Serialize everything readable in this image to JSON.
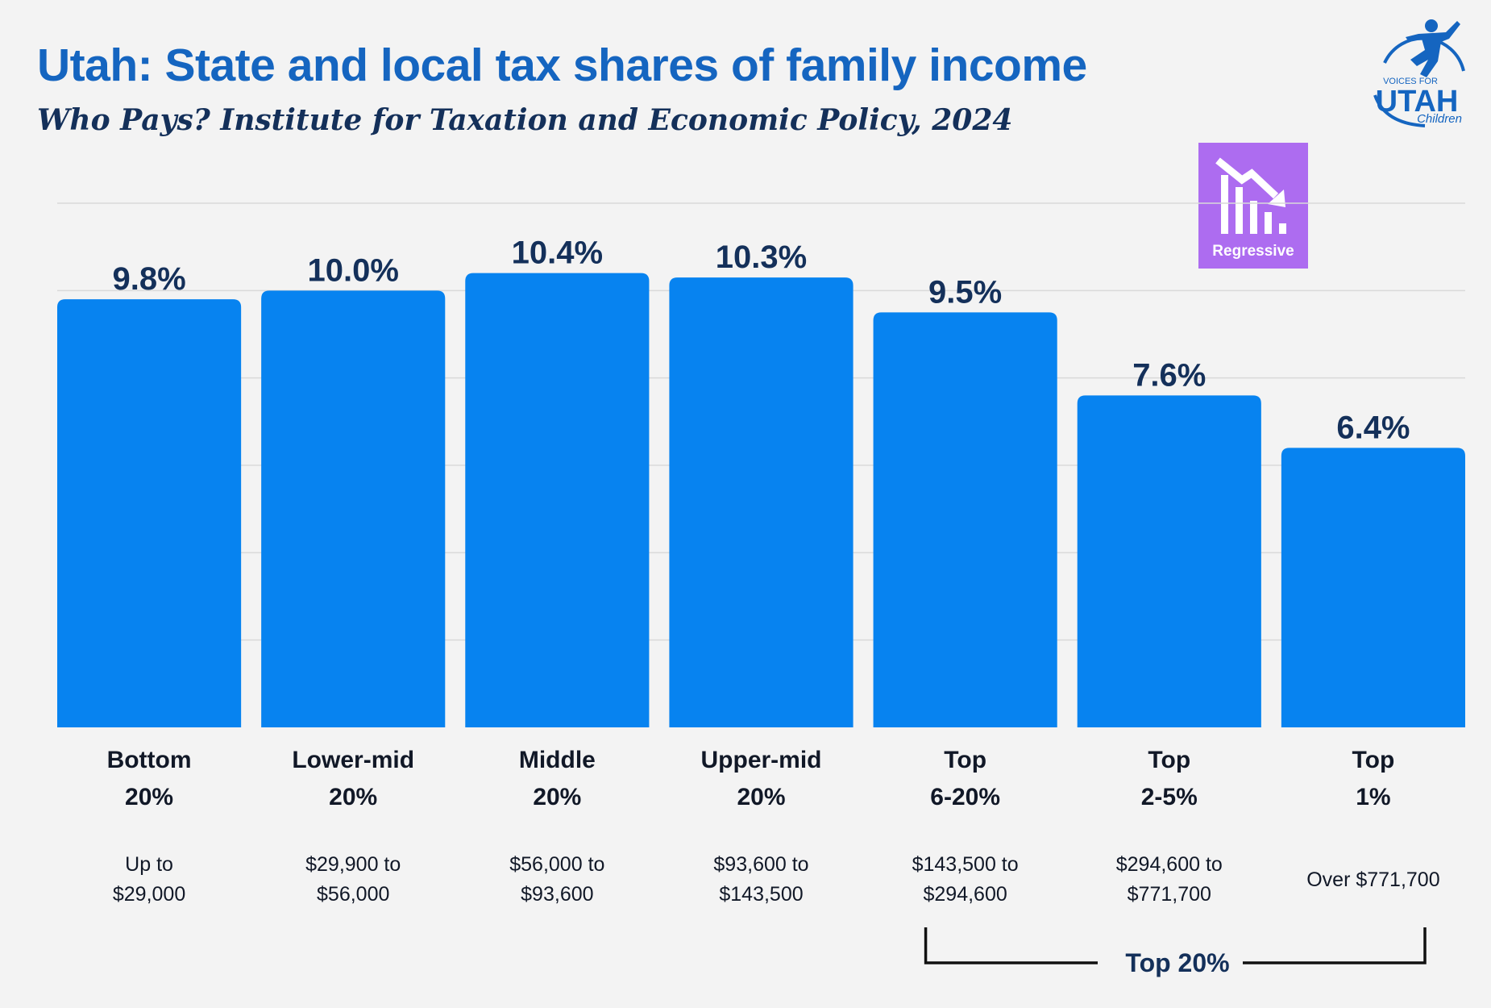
{
  "header": {
    "title": "Utah: State and local tax shares of family income",
    "subtitle": "Who Pays? Institute for Taxation and Economic Policy, 2024"
  },
  "logo": {
    "line1": "VOICES FOR",
    "line2": "UTAH",
    "line3": "Children",
    "color": "#1565c0"
  },
  "badge": {
    "label": "Regressive",
    "icon": "declining-bar-chart-icon",
    "color": "#ad6cf0"
  },
  "chart_data": {
    "type": "bar",
    "categories": [
      "Bottom 20%",
      "Lower-mid 20%",
      "Middle 20%",
      "Upper-mid 20%",
      "Top 6-20%",
      "Top 2-5%",
      "Top 1%"
    ],
    "category_lines": [
      [
        "Bottom",
        "20%"
      ],
      [
        "Lower-mid",
        "20%"
      ],
      [
        "Middle",
        "20%"
      ],
      [
        "Upper-mid",
        "20%"
      ],
      [
        "Top",
        "6-20%"
      ],
      [
        "Top",
        "2-5%"
      ],
      [
        "Top",
        "1%"
      ]
    ],
    "income_ranges": [
      [
        "Up to",
        "$29,000"
      ],
      [
        "$29,900 to",
        "$56,000"
      ],
      [
        "$56,000 to",
        "$93,600"
      ],
      [
        "$93,600 to",
        "$143,500"
      ],
      [
        "$143,500 to",
        "$294,600"
      ],
      [
        "$294,600 to",
        "$771,700"
      ],
      [
        "Over $771,700"
      ]
    ],
    "values": [
      9.8,
      10.0,
      10.4,
      10.3,
      9.5,
      7.6,
      6.4
    ],
    "data_labels": [
      "9.8%",
      "10.0%",
      "10.4%",
      "10.3%",
      "9.5%",
      "7.6%",
      "6.4%"
    ],
    "ylim": [
      0,
      12
    ],
    "grid": true,
    "bar_color": "#0783f0",
    "bracket": {
      "label": "Top 20%",
      "from_category": 4,
      "to_category": 6
    }
  }
}
